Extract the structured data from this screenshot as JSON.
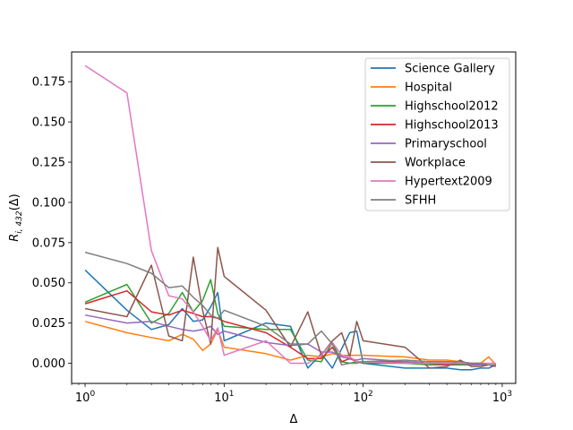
{
  "chart_data": {
    "type": "line",
    "xlabel": "Δ",
    "ylabel": "R_{i,432}(Δ)",
    "ylabel_display": {
      "base": "R",
      "sub": "i, 432",
      "suffix": "(Δ)"
    },
    "xscale": "log",
    "xlim": [
      0.8,
      1250
    ],
    "ylim": [
      -0.0125,
      0.1935
    ],
    "x_ticks": [
      {
        "value": 1,
        "base": "10",
        "exp": "0"
      },
      {
        "value": 10,
        "base": "10",
        "exp": "1"
      },
      {
        "value": 100,
        "base": "10",
        "exp": "2"
      },
      {
        "value": 1000,
        "base": "10",
        "exp": "3"
      }
    ],
    "y_ticks": [
      "0.000",
      "0.025",
      "0.050",
      "0.075",
      "0.100",
      "0.125",
      "0.150",
      "0.175"
    ],
    "grid": false,
    "legend_position": "upper-right",
    "series": [
      {
        "name": "Science Gallery",
        "color": "#1f77b4",
        "x": [
          1,
          2,
          3,
          4,
          5,
          6,
          7,
          8,
          9,
          10,
          20,
          30,
          40,
          50,
          60,
          70,
          80,
          90,
          100,
          200,
          300,
          400,
          500,
          600,
          700,
          800,
          900
        ],
        "y": [
          0.058,
          0.033,
          0.021,
          0.024,
          0.034,
          0.026,
          0.027,
          0.035,
          0.044,
          0.014,
          0.025,
          0.023,
          -0.003,
          0.006,
          -0.003,
          0.009,
          0.019,
          0.02,
          0.0,
          -0.003,
          -0.003,
          -0.003,
          -0.004,
          -0.004,
          -0.003,
          -0.003,
          -0.001
        ]
      },
      {
        "name": "Hospital",
        "color": "#ff7f0e",
        "x": [
          1,
          2,
          3,
          4,
          5,
          6,
          7,
          8,
          9,
          10,
          20,
          30,
          40,
          50,
          60,
          70,
          80,
          90,
          100,
          200,
          300,
          400,
          500,
          600,
          700,
          800,
          900
        ],
        "y": [
          0.026,
          0.019,
          0.016,
          0.014,
          0.018,
          0.015,
          0.008,
          0.012,
          0.021,
          0.01,
          0.006,
          0.002,
          0.005,
          0.004,
          0.006,
          0.005,
          0.005,
          0.005,
          0.005,
          0.004,
          0.002,
          0.002,
          0.001,
          0.0,
          0.0,
          0.004,
          -0.001
        ]
      },
      {
        "name": "Highschool2012",
        "color": "#2ca02c",
        "x": [
          1,
          2,
          3,
          4,
          5,
          6,
          7,
          8,
          9,
          10,
          20,
          30,
          40,
          50,
          60,
          70,
          80,
          90,
          100,
          200,
          300,
          400,
          500,
          600,
          700,
          800,
          900
        ],
        "y": [
          0.038,
          0.049,
          0.025,
          0.031,
          0.044,
          0.032,
          0.039,
          0.052,
          0.031,
          0.023,
          0.021,
          0.021,
          0.002,
          0.001,
          0.013,
          0.001,
          0.0,
          0.001,
          0.0,
          0.0,
          -0.001,
          -0.001,
          -0.001,
          -0.001,
          -0.001,
          -0.001,
          -0.001
        ]
      },
      {
        "name": "Highschool2013",
        "color": "#d62728",
        "x": [
          1,
          2,
          3,
          4,
          5,
          6,
          7,
          8,
          9,
          10,
          20,
          30,
          40,
          50,
          60,
          70,
          80,
          90,
          100,
          200,
          300,
          400,
          500,
          600,
          700,
          800,
          900
        ],
        "y": [
          0.037,
          0.045,
          0.032,
          0.03,
          0.033,
          0.031,
          0.029,
          0.029,
          0.028,
          0.026,
          0.019,
          0.01,
          0.003,
          0.003,
          0.01,
          0.001,
          0.003,
          0.001,
          0.001,
          0.001,
          0.0,
          -0.001,
          0.0,
          0.0,
          -0.001,
          -0.001,
          -0.001
        ]
      },
      {
        "name": "Primaryschool",
        "color": "#9467bd",
        "x": [
          1,
          2,
          3,
          4,
          5,
          6,
          7,
          8,
          9,
          10,
          20,
          30,
          40,
          50,
          60,
          70,
          80,
          90,
          100,
          200,
          300,
          400,
          500,
          600,
          700,
          800,
          900
        ],
        "y": [
          0.03,
          0.025,
          0.026,
          0.023,
          0.021,
          0.02,
          0.021,
          0.023,
          0.018,
          0.02,
          0.013,
          0.011,
          0.012,
          0.007,
          0.007,
          0.004,
          0.003,
          0.002,
          0.003,
          0.001,
          0.0,
          0.0,
          0.0,
          -0.001,
          -0.001,
          -0.001,
          -0.001
        ]
      },
      {
        "name": "Workplace",
        "color": "#8c564b",
        "x": [
          1,
          2,
          3,
          4,
          5,
          6,
          7,
          8,
          9,
          10,
          20,
          30,
          40,
          50,
          60,
          70,
          80,
          90,
          100,
          200,
          300,
          400,
          500,
          600,
          700,
          800,
          900
        ],
        "y": [
          0.034,
          0.029,
          0.061,
          0.017,
          0.014,
          0.066,
          0.033,
          0.012,
          0.072,
          0.054,
          0.033,
          0.01,
          0.032,
          0.005,
          0.014,
          0.019,
          0.004,
          0.026,
          0.014,
          0.01,
          -0.003,
          -0.002,
          0.002,
          -0.002,
          -0.002,
          -0.001,
          -0.002
        ]
      },
      {
        "name": "Hypertext2009",
        "color": "#e377c2",
        "x": [
          1,
          2,
          3,
          4,
          5,
          6,
          7,
          8,
          9,
          10,
          20,
          30,
          40,
          50,
          60,
          70,
          80,
          90,
          100,
          200,
          300,
          400,
          500,
          600,
          700,
          800,
          900
        ],
        "y": [
          0.185,
          0.168,
          0.07,
          0.042,
          0.04,
          0.032,
          0.023,
          0.014,
          0.022,
          0.005,
          0.014,
          0.0,
          0.0,
          0.005,
          0.013,
          0.005,
          0.004,
          0.001,
          0.001,
          0.0,
          0.0,
          0.0,
          0.0,
          0.0,
          0.0,
          0.0,
          0.0
        ]
      },
      {
        "name": "SFHH",
        "color": "#7f7f7f",
        "x": [
          1,
          2,
          3,
          4,
          5,
          6,
          7,
          8,
          9,
          10,
          20,
          30,
          40,
          50,
          60,
          70,
          80,
          90,
          100,
          200,
          300,
          400,
          500,
          600,
          700,
          800,
          900
        ],
        "y": [
          0.069,
          0.062,
          0.056,
          0.047,
          0.048,
          0.041,
          0.036,
          0.03,
          0.028,
          0.033,
          0.023,
          0.012,
          0.012,
          0.02,
          0.012,
          -0.001,
          0.0,
          0.0,
          0.001,
          0.002,
          0.001,
          0.001,
          0.001,
          0.0,
          0.0,
          -0.001,
          -0.001
        ]
      }
    ]
  }
}
